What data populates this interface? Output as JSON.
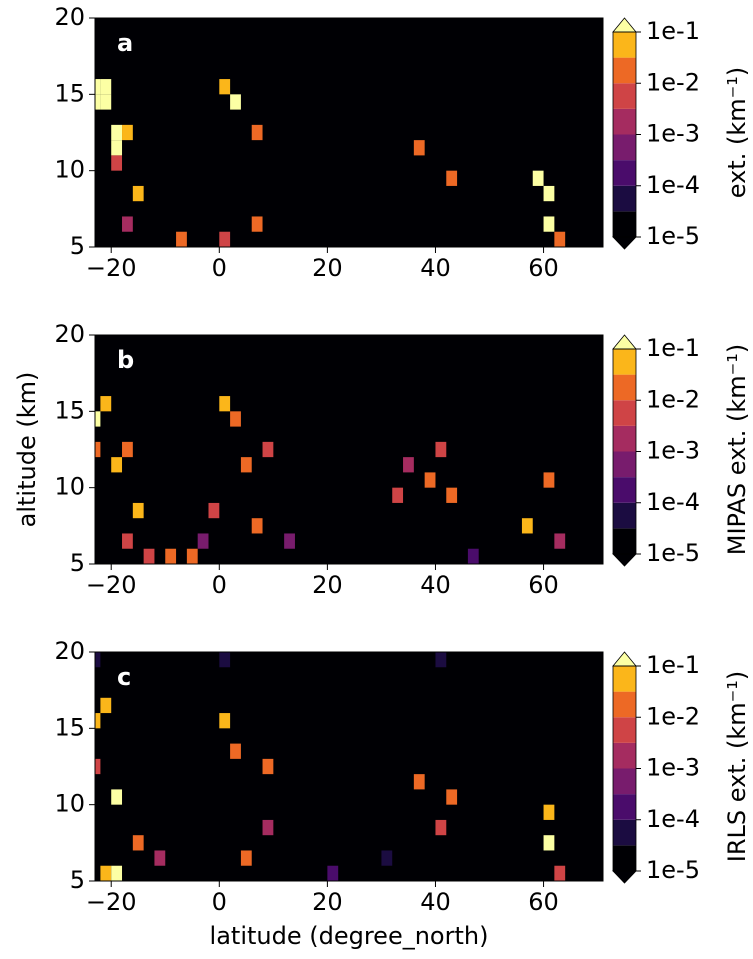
{
  "chart_data": [
    {
      "type": "heatmap",
      "panel_label": "a",
      "colorbar_label": "ext. (km⁻¹)",
      "xlim": [
        -23,
        71
      ],
      "ylim": [
        5,
        20
      ],
      "xticks": [
        {
          "value": -20,
          "label": "−20"
        },
        0,
        20,
        40,
        60
      ],
      "yticks": [
        5,
        10,
        15,
        20
      ],
      "levels": [
        -5,
        -4.5,
        -4,
        -3.5,
        -3,
        -2.5,
        -2,
        -1.5,
        -1
      ],
      "colors": [
        "#000004",
        "#000004",
        "#1b0c41",
        "#4a0c6b",
        "#781c6d",
        "#a52c60",
        "#cf4446",
        "#ed6925",
        "#fbb61a",
        "#fcffa4"
      ],
      "cbticks": [
        {
          "value": -5,
          "label": "1e-5"
        },
        {
          "value": -4,
          "label": "1e-4"
        },
        {
          "value": -3,
          "label": "1e-3"
        },
        {
          "value": -2,
          "label": "1e-2"
        },
        {
          "value": -1,
          "label": "1e-1"
        }
      ],
      "cells": {
        "x": [
          -24,
          -22,
          -24,
          -22,
          -20,
          -18,
          -20,
          -20,
          -16,
          -18,
          0,
          2,
          6,
          36,
          42,
          58,
          60,
          60,
          62,
          -8,
          0,
          6
        ],
        "y": [
          14,
          14,
          15,
          15,
          12,
          12,
          11,
          10,
          8,
          6,
          15,
          14,
          12,
          11,
          9,
          9,
          8,
          6,
          5,
          5,
          5,
          6
        ],
        "values": [
          -1,
          -1,
          -1,
          -1,
          -1,
          -1.5,
          -1,
          -2.5,
          -1.5,
          -3,
          -1.5,
          -1,
          -2,
          -2,
          -2,
          -1,
          -1,
          -1,
          -2,
          -2,
          -2.5,
          -2
        ]
      }
    },
    {
      "type": "heatmap",
      "panel_label": "b",
      "colorbar_label": "MIPAS ext. (km⁻¹)",
      "ylabel": "altitude (km)",
      "xlim": [
        -23,
        71
      ],
      "ylim": [
        5,
        20
      ],
      "xticks": [
        {
          "value": -20,
          "label": "−20"
        },
        0,
        20,
        40,
        60
      ],
      "yticks": [
        5,
        10,
        15,
        20
      ],
      "levels": [
        -5,
        -4.5,
        -4,
        -3.5,
        -3,
        -2.5,
        -2,
        -1.5,
        -1
      ],
      "colors": [
        "#000004",
        "#000004",
        "#1b0c41",
        "#4a0c6b",
        "#781c6d",
        "#a52c60",
        "#cf4446",
        "#ed6925",
        "#fbb61a",
        "#fcffa4"
      ],
      "cbticks": [
        {
          "value": -5,
          "label": "1e-5"
        },
        {
          "value": -4,
          "label": "1e-4"
        },
        {
          "value": -3,
          "label": "1e-3"
        },
        {
          "value": -2,
          "label": "1e-2"
        },
        {
          "value": -1,
          "label": "1e-1"
        }
      ],
      "cells": {
        "x": [
          -24,
          -22,
          -24,
          -20,
          -18,
          -16,
          -14,
          -10,
          -6,
          -4,
          -2,
          0,
          2,
          4,
          8,
          12,
          32,
          34,
          38,
          40,
          42,
          46,
          56,
          60,
          62,
          -18,
          6
        ],
        "y": [
          14,
          15,
          12,
          11,
          12,
          8,
          5,
          5,
          5,
          6,
          8,
          15,
          14,
          11,
          12,
          6,
          9,
          11,
          10,
          12,
          9,
          5,
          7,
          10,
          6,
          6,
          7
        ],
        "values": [
          -1,
          -1.5,
          -2,
          -1.5,
          -2,
          -1.5,
          -2.5,
          -2,
          -2,
          -3.5,
          -2.5,
          -1.5,
          -2,
          -2,
          -2.5,
          -3.5,
          -2.5,
          -3,
          -2,
          -2.5,
          -2,
          -4,
          -1.5,
          -2,
          -3,
          -2.5,
          -2
        ]
      }
    },
    {
      "type": "heatmap",
      "panel_label": "c",
      "colorbar_label": "IRLS ext. (km⁻¹)",
      "xlabel": "latitude (degree_north)",
      "xlim": [
        -23,
        71
      ],
      "ylim": [
        5,
        20
      ],
      "xticks": [
        {
          "value": -20,
          "label": "−20"
        },
        0,
        20,
        40,
        60
      ],
      "yticks": [
        5,
        10,
        15,
        20
      ],
      "levels": [
        -5,
        -4.5,
        -4,
        -3.5,
        -3,
        -2.5,
        -2,
        -1.5,
        -1
      ],
      "colors": [
        "#000004",
        "#000004",
        "#1b0c41",
        "#4a0c6b",
        "#781c6d",
        "#a52c60",
        "#cf4446",
        "#ed6925",
        "#fbb61a",
        "#fcffa4"
      ],
      "cbticks": [
        {
          "value": -5,
          "label": "1e-5"
        },
        {
          "value": -4,
          "label": "1e-4"
        },
        {
          "value": -3,
          "label": "1e-3"
        },
        {
          "value": -2,
          "label": "1e-2"
        },
        {
          "value": -1,
          "label": "1e-1"
        }
      ],
      "cells": {
        "x": [
          -24,
          -22,
          -24,
          -20,
          -22,
          -20,
          -16,
          -12,
          0,
          2,
          8,
          4,
          8,
          36,
          40,
          42,
          60,
          60,
          62,
          20,
          30,
          -24,
          0,
          40
        ],
        "y": [
          15,
          16,
          12,
          10,
          5,
          5,
          7,
          6,
          15,
          13,
          12,
          6,
          8,
          11,
          8,
          10,
          9,
          7,
          5,
          5,
          6,
          19,
          19,
          19
        ],
        "values": [
          -1.5,
          -1.5,
          -2.5,
          -1,
          -1.5,
          -1,
          -2,
          -3,
          -1.5,
          -2,
          -2,
          -2,
          -3,
          -2,
          -2.5,
          -2,
          -1.5,
          -1,
          -2.5,
          -4,
          -4.5,
          -4.5,
          -4.5,
          -4.5
        ]
      }
    }
  ]
}
